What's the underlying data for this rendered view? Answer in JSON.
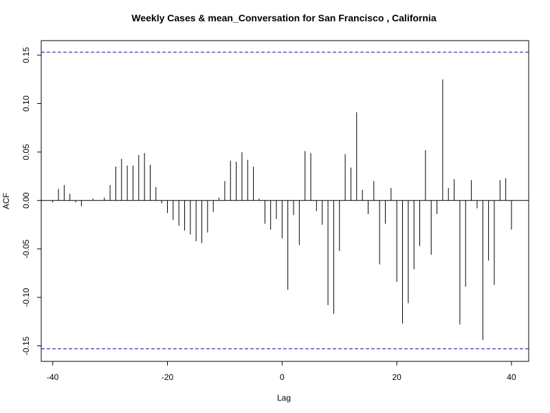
{
  "chart_data": {
    "type": "bar",
    "title": "Weekly Cases & mean_Conversation for San Francisco , California",
    "xlabel": "Lag",
    "ylabel": "ACF",
    "xlim": [
      -42,
      43
    ],
    "ylim": [
      -0.166,
      0.165
    ],
    "xticks": [
      -40,
      -20,
      0,
      20,
      40
    ],
    "yticks": [
      -0.15,
      -0.1,
      -0.05,
      0.0,
      0.05,
      0.1,
      0.15
    ],
    "ytick_labels": [
      "-0.15",
      "-0.10",
      "-0.05",
      "0.00",
      "0.05",
      "0.10",
      "0.15"
    ],
    "xtick_labels": [
      "-40",
      "-20",
      "0",
      "20",
      "40"
    ],
    "confidence_bounds": [
      0.153,
      -0.153
    ],
    "confidence_color": "#0000cc",
    "grid": false,
    "x": [
      -40,
      -39,
      -38,
      -37,
      -36,
      -35,
      -34,
      -33,
      -32,
      -31,
      -30,
      -29,
      -28,
      -27,
      -26,
      -25,
      -24,
      -23,
      -22,
      -21,
      -20,
      -19,
      -18,
      -17,
      -16,
      -15,
      -14,
      -13,
      -12,
      -11,
      -10,
      -9,
      -8,
      -7,
      -6,
      -5,
      -4,
      -3,
      -2,
      -1,
      0,
      1,
      2,
      3,
      4,
      5,
      6,
      7,
      8,
      9,
      10,
      11,
      12,
      13,
      14,
      15,
      16,
      17,
      18,
      19,
      20,
      21,
      22,
      23,
      24,
      25,
      26,
      27,
      28,
      29,
      30,
      31,
      32,
      33,
      34,
      35,
      36,
      37,
      38,
      39,
      40
    ],
    "values": [
      -0.002,
      0.012,
      0.016,
      0.007,
      -0.002,
      -0.006,
      0.0,
      0.002,
      0.0,
      0.003,
      0.016,
      0.035,
      0.043,
      0.036,
      0.036,
      0.047,
      0.049,
      0.037,
      0.014,
      -0.003,
      -0.013,
      -0.02,
      -0.026,
      -0.031,
      -0.035,
      -0.042,
      -0.044,
      -0.033,
      -0.012,
      0.003,
      0.02,
      0.041,
      0.04,
      0.05,
      0.042,
      0.035,
      0.002,
      -0.024,
      -0.03,
      -0.019,
      -0.039,
      -0.092,
      -0.015,
      -0.046,
      0.051,
      0.049,
      -0.011,
      -0.025,
      -0.108,
      -0.117,
      -0.052,
      0.048,
      0.034,
      0.091,
      0.011,
      -0.014,
      0.02,
      -0.066,
      -0.024,
      0.013,
      -0.084,
      -0.127,
      -0.106,
      -0.071,
      -0.047,
      0.052,
      -0.056,
      -0.014,
      0.125,
      0.013,
      0.022,
      -0.128,
      -0.089,
      0.021,
      -0.008,
      -0.144,
      -0.062,
      -0.087,
      0.021,
      0.023,
      -0.03
    ]
  }
}
